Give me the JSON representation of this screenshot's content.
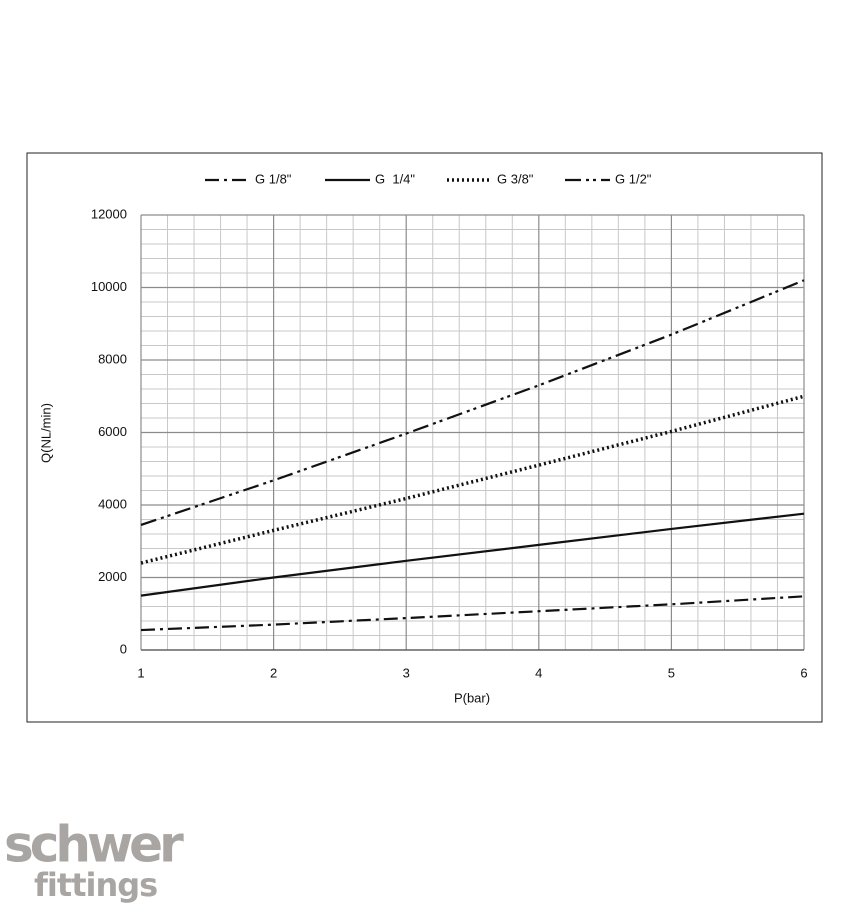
{
  "chart_data": {
    "type": "line",
    "x_label": "P(bar)",
    "y_label": "Q(NL/min)",
    "x": [
      1,
      2,
      3,
      4,
      5,
      6
    ],
    "series": [
      {
        "name": "G 1/8\"",
        "color": "#111111",
        "dash": "dashdot",
        "values": [
          550,
          700,
          880,
          1070,
          1260,
          1480
        ]
      },
      {
        "name": "G  1/4\"",
        "color": "#111111",
        "dash": "solid",
        "values": [
          1500,
          2000,
          2460,
          2900,
          3340,
          3760
        ]
      },
      {
        "name": "G 3/8\"",
        "color": "#111111",
        "dash": "dotted",
        "values": [
          2400,
          3300,
          4180,
          5100,
          6030,
          7000
        ]
      },
      {
        "name": "G 1/2\"",
        "color": "#111111",
        "dash": "dashdotdot",
        "values": [
          3450,
          4680,
          5970,
          7300,
          8700,
          10200
        ]
      }
    ],
    "xlim": [
      1,
      6
    ],
    "xticks": [
      1,
      2,
      3,
      4,
      5,
      6
    ],
    "ylim": [
      0,
      12000
    ],
    "yticks": [
      0,
      2000,
      4000,
      6000,
      8000,
      10000,
      12000
    ],
    "grid": true,
    "legend": "top"
  },
  "logo": {
    "line1": "schwer",
    "line2": "fittings"
  }
}
